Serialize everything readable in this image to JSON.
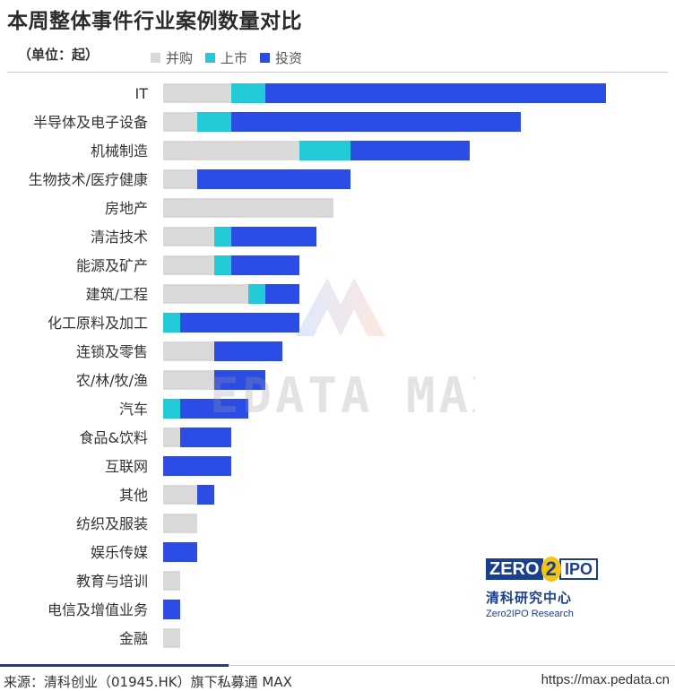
{
  "title": "本周整体事件行业案例数量对比",
  "unit": "（单位：起）",
  "legend": [
    {
      "name": "并购",
      "color": "#d9d9d9"
    },
    {
      "name": "上市",
      "color": "#22c9d6"
    },
    {
      "name": "投资",
      "color": "#2b4de6"
    }
  ],
  "watermark": "PEDATA MAX",
  "brand": {
    "logo_left": "ZERO",
    "logo_mid": "2",
    "logo_right": "IPO",
    "cn": "清科研究中心",
    "en": "Zero2IPO Research"
  },
  "footer": {
    "source": "来源：清科创业（01945.HK）旗下私募通 MAX",
    "url": "https://max.pedata.cn"
  },
  "chart_data": {
    "type": "bar",
    "orientation": "horizontal",
    "stacked": true,
    "categories": [
      "IT",
      "半导体及电子设备",
      "机械制造",
      "生物技术/医疗健康",
      "房地产",
      "清洁技术",
      "能源及矿产",
      "建筑/工程",
      "化工原料及加工",
      "连锁及零售",
      "农/林/牧/渔",
      "汽车",
      "食品&饮料",
      "互联网",
      "其他",
      "纺织及服装",
      "娱乐传媒",
      "教育与培训",
      "电信及增值业务",
      "金融"
    ],
    "series": [
      {
        "name": "并购",
        "color": "#d9d9d9",
        "values": [
          4,
          2,
          8,
          2,
          10,
          3,
          3,
          5,
          0,
          3,
          3,
          0,
          1,
          0,
          2,
          2,
          0,
          1,
          0,
          1
        ]
      },
      {
        "name": "上市",
        "color": "#22c9d6",
        "values": [
          2,
          2,
          3,
          0,
          0,
          1,
          1,
          1,
          1,
          0,
          0,
          1,
          0,
          0,
          0,
          0,
          0,
          0,
          0,
          0
        ]
      },
      {
        "name": "投资",
        "color": "#2b4de6",
        "values": [
          20,
          17,
          7,
          9,
          0,
          5,
          4,
          2,
          7,
          4,
          3,
          4,
          3,
          4,
          1,
          0,
          2,
          0,
          1,
          0
        ]
      }
    ],
    "xlim": [
      0,
      30
    ],
    "legend_position": "top-left",
    "grid": false
  }
}
